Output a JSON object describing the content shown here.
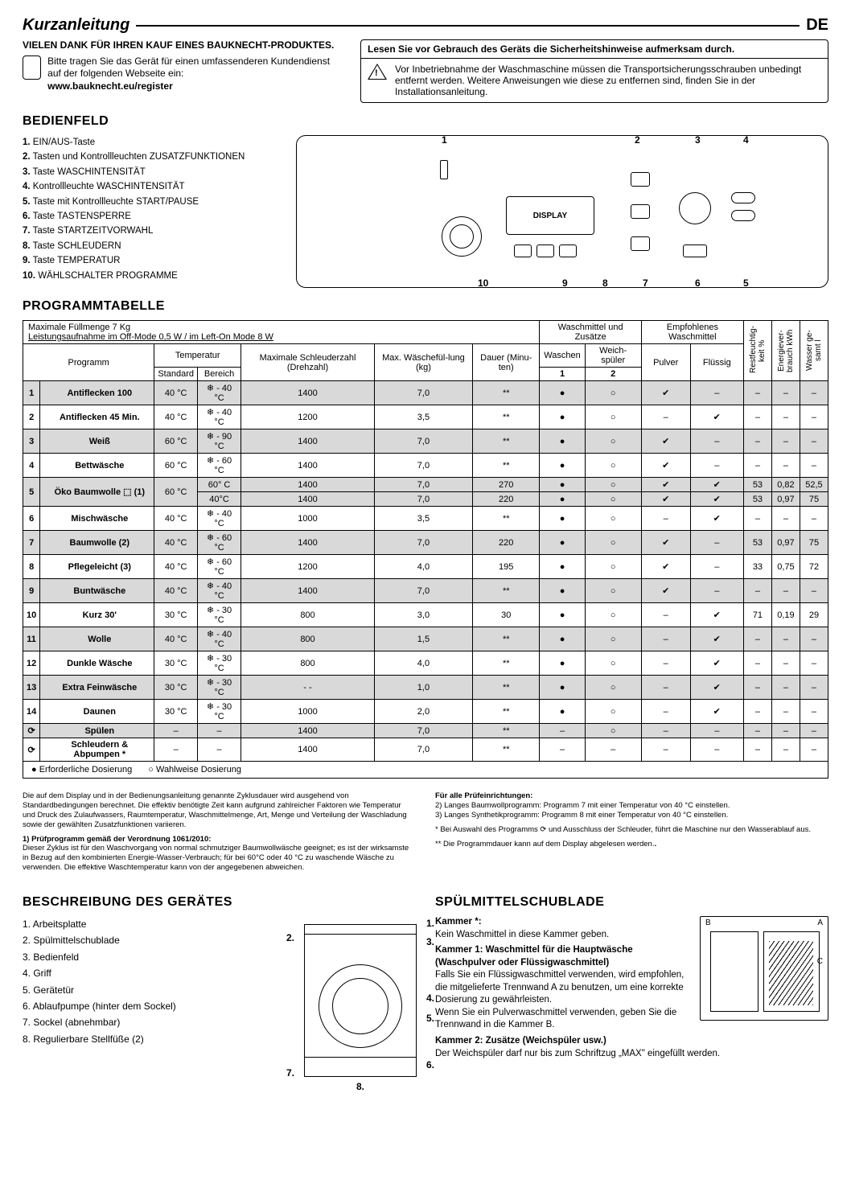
{
  "header": {
    "title": "Kurzanleitung",
    "lang": "DE"
  },
  "thanks": {
    "line1": "VIELEN DANK FÜR IHREN KAUF EINES BAUKNECHT-PRODUKTES.",
    "line2": "Bitte tragen Sie das Gerät für einen umfassenderen Kundendienst auf der folgenden Webseite ein:",
    "url": "www.bauknecht.eu/register"
  },
  "warning": {
    "header": "Lesen Sie vor Gebrauch des Geräts die Sicherheitshinweise aufmerksam durch.",
    "body": "Vor Inbetriebnahme der Waschmaschine müssen die Transportsicherungsschrauben unbedingt entfernt werden. Weitere Anweisungen wie diese zu entfernen sind, finden Sie in der Installationsanleitung."
  },
  "panel": {
    "heading": "BEDIENFELD",
    "items": [
      "EIN/AUS-Taste",
      "Tasten und Kontrollleuchten ZUSATZFUNKTIONEN",
      "Taste WASCHINTENSITÄT",
      "Kontrollleuchte WASCHINTENSITÄT",
      "Taste mit Kontrollleuchte START/PAUSE",
      "Taste TASTENSPERRE",
      "Taste STARTZEITVORWAHL",
      "Taste SCHLEUDERN",
      "Taste TEMPERATUR",
      "WÄHLSCHALTER PROGRAMME"
    ],
    "display_label": "DISPLAY"
  },
  "table": {
    "heading": "PROGRAMMTABELLE",
    "cap_line1": "Maximale Füllmenge 7 Kg",
    "cap_line2": "Leistungsaufnahme im Off-Mode 0,5 W / im Left-On Mode 8 W",
    "head": {
      "programm": "Programm",
      "temp": "Temperatur",
      "temp_std": "Standard",
      "temp_range": "Bereich",
      "schleuder": "Maximale Schleuderzahl (Drehzahl)",
      "fuell": "Max. Wäschefül-lung (kg)",
      "dauer": "Dauer (Minu-ten)",
      "zusatz": "Waschmittel und Zusätze",
      "waschen": "Waschen",
      "weich": "Weich-spüler",
      "empf": "Empfohlenes Waschmittel",
      "pulver": "Pulver",
      "fluessig": "Flüssig",
      "rest": "Restfeuchtig-keit %",
      "energie": "Energiever-brauch kWh",
      "wasser": "Wasser ge-samt l"
    },
    "rows": [
      {
        "n": "1",
        "name": "Antiflecken 100",
        "ts": "40 °C",
        "tr": "❄ - 40 °C",
        "sp": "1400",
        "kg": "7,0",
        "d": "**",
        "w": "●",
        "ws": "○",
        "p": "✔",
        "f": "–",
        "r": "–",
        "e": "–",
        "wa": "–",
        "shade": true
      },
      {
        "n": "2",
        "name": "Antiflecken 45 Min.",
        "ts": "40 °C",
        "tr": "❄ - 40 °C",
        "sp": "1200",
        "kg": "3,5",
        "d": "**",
        "w": "●",
        "ws": "○",
        "p": "–",
        "f": "✔",
        "r": "–",
        "e": "–",
        "wa": "–"
      },
      {
        "n": "3",
        "name": "Weiß",
        "ts": "60 °C",
        "tr": "❄ - 90 °C",
        "sp": "1400",
        "kg": "7,0",
        "d": "**",
        "w": "●",
        "ws": "○",
        "p": "✔",
        "f": "–",
        "r": "–",
        "e": "–",
        "wa": "–",
        "shade": true
      },
      {
        "n": "4",
        "name": "Bettwäsche",
        "ts": "60 °C",
        "tr": "❄ - 60 °C",
        "sp": "1400",
        "kg": "7,0",
        "d": "**",
        "w": "●",
        "ws": "○",
        "p": "✔",
        "f": "–",
        "r": "–",
        "e": "–",
        "wa": "–"
      },
      {
        "n": "5",
        "name": "Öko Baumwolle ⬚ (1)",
        "ts": "60 °C",
        "tr": "60° C",
        "sp": "1400",
        "kg": "7,0",
        "d": "270",
        "w": "●",
        "ws": "○",
        "p": "✔",
        "f": "✔",
        "r": "53",
        "e": "0,82",
        "wa": "52,5",
        "shade": true,
        "rowspan": 2
      },
      {
        "n": "",
        "name": "",
        "ts": "",
        "tr": "40°C",
        "sp": "1400",
        "kg": "7,0",
        "d": "220",
        "w": "●",
        "ws": "○",
        "p": "✔",
        "f": "✔",
        "r": "53",
        "e": "0,97",
        "wa": "75",
        "shade": true,
        "sub": true
      },
      {
        "n": "6",
        "name": "Mischwäsche",
        "ts": "40 °C",
        "tr": "❄ - 40 °C",
        "sp": "1000",
        "kg": "3,5",
        "d": "**",
        "w": "●",
        "ws": "○",
        "p": "–",
        "f": "✔",
        "r": "–",
        "e": "–",
        "wa": "–"
      },
      {
        "n": "7",
        "name": "Baumwolle (2)",
        "ts": "40 °C",
        "tr": "❄ - 60 °C",
        "sp": "1400",
        "kg": "7,0",
        "d": "220",
        "w": "●",
        "ws": "○",
        "p": "✔",
        "f": "–",
        "r": "53",
        "e": "0,97",
        "wa": "75",
        "shade": true
      },
      {
        "n": "8",
        "name": "Pflegeleicht (3)",
        "ts": "40 °C",
        "tr": "❄ - 60 °C",
        "sp": "1200",
        "kg": "4,0",
        "d": "195",
        "w": "●",
        "ws": "○",
        "p": "✔",
        "f": "–",
        "r": "33",
        "e": "0,75",
        "wa": "72"
      },
      {
        "n": "9",
        "name": "Buntwäsche",
        "ts": "40 °C",
        "tr": "❄ - 40 °C",
        "sp": "1400",
        "kg": "7,0",
        "d": "**",
        "w": "●",
        "ws": "○",
        "p": "✔",
        "f": "–",
        "r": "–",
        "e": "–",
        "wa": "–",
        "shade": true
      },
      {
        "n": "10",
        "name": "Kurz 30'",
        "ts": "30 °C",
        "tr": "❄ - 30 °C",
        "sp": "800",
        "kg": "3,0",
        "d": "30",
        "w": "●",
        "ws": "○",
        "p": "–",
        "f": "✔",
        "r": "71",
        "e": "0,19",
        "wa": "29"
      },
      {
        "n": "11",
        "name": "Wolle",
        "ts": "40 °C",
        "tr": "❄ - 40 °C",
        "sp": "800",
        "kg": "1,5",
        "d": "**",
        "w": "●",
        "ws": "○",
        "p": "–",
        "f": "✔",
        "r": "–",
        "e": "–",
        "wa": "–",
        "shade": true
      },
      {
        "n": "12",
        "name": "Dunkle Wäsche",
        "ts": "30 °C",
        "tr": "❄ - 30 °C",
        "sp": "800",
        "kg": "4,0",
        "d": "**",
        "w": "●",
        "ws": "○",
        "p": "–",
        "f": "✔",
        "r": "–",
        "e": "–",
        "wa": "–"
      },
      {
        "n": "13",
        "name": "Extra Feinwäsche",
        "ts": "30 °C",
        "tr": "❄ - 30 °C",
        "sp": "- -",
        "kg": "1,0",
        "d": "**",
        "w": "●",
        "ws": "○",
        "p": "–",
        "f": "✔",
        "r": "–",
        "e": "–",
        "wa": "–",
        "shade": true
      },
      {
        "n": "14",
        "name": "Daunen",
        "ts": "30 °C",
        "tr": "❄ - 30 °C",
        "sp": "1000",
        "kg": "2,0",
        "d": "**",
        "w": "●",
        "ws": "○",
        "p": "–",
        "f": "✔",
        "r": "–",
        "e": "–",
        "wa": "–"
      },
      {
        "n": "⟳",
        "name": "Spülen",
        "ts": "–",
        "tr": "–",
        "sp": "1400",
        "kg": "7,0",
        "d": "**",
        "w": "–",
        "ws": "○",
        "p": "–",
        "f": "–",
        "r": "–",
        "e": "–",
        "wa": "–",
        "shade": true
      },
      {
        "n": "⟳",
        "name": "Schleudern & Abpumpen *",
        "ts": "–",
        "tr": "–",
        "sp": "1400",
        "kg": "7,0",
        "d": "**",
        "w": "–",
        "ws": "–",
        "p": "–",
        "f": "–",
        "r": "–",
        "e": "–",
        "wa": "–"
      }
    ],
    "legend": {
      "req": "● Erforderliche Dosierung",
      "opt": "○ Wahlweise Dosierung"
    }
  },
  "notes": {
    "left1": "Die auf dem Display und in der Bedienungsanleitung genannte Zyklusdauer wird ausgehend von Standardbedingungen berechnet. Die effektiv benötigte Zeit kann aufgrund zahlreicher Faktoren wie Temperatur und Druck des Zulaufwassers, Raumtemperatur, Waschmittelmenge, Art, Menge und Verteilung der Waschladung sowie der gewählten Zusatzfunktionen variieren.",
    "left2_h": "1) Prüfprogramm gemäß der Verordnung 1061/2010:",
    "left2": "Dieser Zyklus ist für den Waschvorgang von normal schmutziger Baumwollwäsche geeignet; es ist der wirksamste in Bezug auf den kombinierten Energie-Wasser-Verbrauch; für bei 60°C oder 40 °C zu waschende Wäsche zu verwenden. Die effektive Waschtemperatur kann von der angegebenen abweichen.",
    "right_h": "Für alle Prüfeinrichtungen:",
    "right1": "2)  Langes Baumwollprogramm: Programm 7 mit einer Temperatur von 40 °C einstellen.",
    "right2": "3)  Langes Synthetikprogramm: Programm 8 mit einer Temperatur von 40 °C einstellen.",
    "right3": "* Bei Auswahl des Programms ⟳ und Ausschluss der Schleuder, führt die Maschine nur den Wasserablauf aus.",
    "right4": "** Die Programmdauer kann auf dem Display abgelesen werden."
  },
  "device": {
    "heading": "BESCHREIBUNG DES GERÄTES",
    "items": [
      "Arbeitsplatte",
      "Spülmittelschublade",
      "Bedienfeld",
      "Griff",
      "Gerätetür",
      "Ablaufpumpe (hinter dem Sockel)",
      "Sockel (abnehmbar)",
      "Regulierbare Stellfüße (2)"
    ]
  },
  "detergent": {
    "heading": "SPÜLMITTELSCHUBLADE",
    "k0_h": "Kammer *:",
    "k0": "Kein Waschmittel in diese Kammer geben.",
    "k1_h": "Kammer 1: Waschmittel für die Hauptwäsche (Waschpulver oder Flüssigwaschmittel)",
    "k1": "Falls Sie ein Flüssigwaschmittel verwenden, wird empfohlen, die mitgelieferte Trennwand A zu benutzen, um eine korrekte Dosierung zu gewährleisten.",
    "k1b": "Wenn Sie ein Pulverwaschmittel verwenden, geben Sie die Trennwand in die Kammer B.",
    "k2_h": "Kammer 2: Zusätze (Weichspüler usw.)",
    "k2": "Der Weichspüler darf nur bis zum Schriftzug „MAX\" eingefüllt werden.",
    "labels": {
      "a": "A",
      "b": "B",
      "c": "C"
    }
  }
}
